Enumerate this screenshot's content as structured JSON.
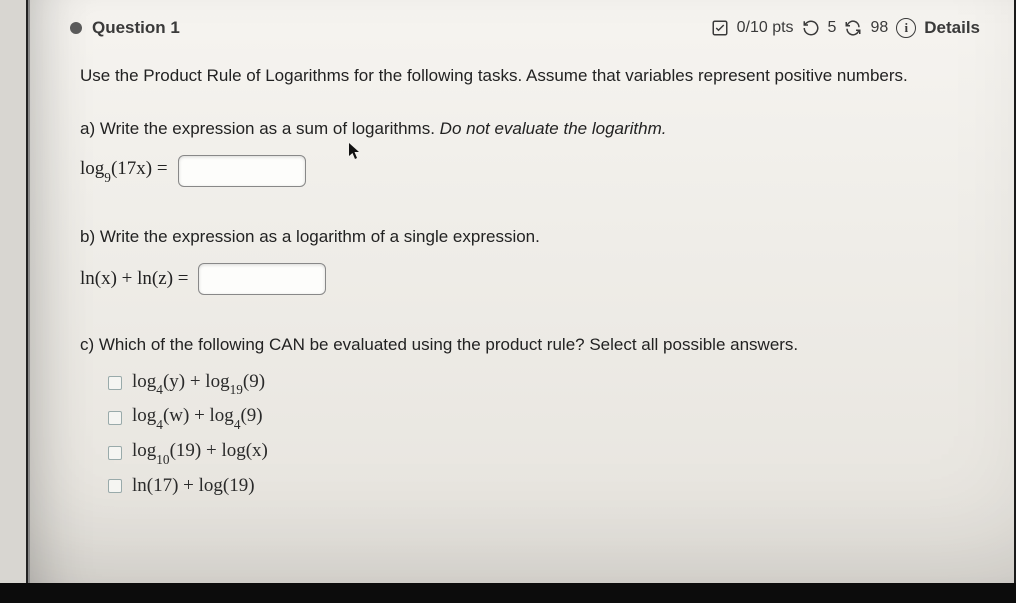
{
  "header": {
    "question_label": "Question 1",
    "score": "0/10 pts",
    "attempts_remaining": "5",
    "time_or_count": "98",
    "details_label": "Details"
  },
  "intro": "Use the Product Rule of Logarithms for the following tasks. Assume that variables represent positive numbers.",
  "part_a": {
    "prompt_prefix": "a) Write the expression as a sum of logarithms. ",
    "prompt_italic": "Do not evaluate the logarithm.",
    "expr_log": "log",
    "expr_base": "9",
    "expr_arg": "(17x)",
    "equals": "="
  },
  "part_b": {
    "prompt": "b) Write the expression as a logarithm of a single expression.",
    "expr": "ln(x) + ln(z) ="
  },
  "part_c": {
    "prompt": "c) Which of the following CAN be evaluated using the product rule? Select all possible answers.",
    "options": [
      {
        "log1": "log",
        "base1": "4",
        "arg1": "(y)",
        "plus": " + ",
        "log2": "log",
        "base2": "19",
        "arg2": "(9)"
      },
      {
        "log1": "log",
        "base1": "4",
        "arg1": "(w)",
        "plus": " + ",
        "log2": "log",
        "base2": "4",
        "arg2": "(9)"
      },
      {
        "log1": "log",
        "base1": "10",
        "arg1": "(19)",
        "plus": " + ",
        "log2": "log",
        "base2": "",
        "arg2": "(x)"
      },
      {
        "log1": "ln",
        "base1": "",
        "arg1": "(17)",
        "plus": " + ",
        "log2": "log",
        "base2": "",
        "arg2": "(19)"
      }
    ]
  },
  "colors": {
    "page_bg_top": "#f6f4f0",
    "page_bg_bottom": "#e6e3dd",
    "text": "#2f2f2f",
    "dot": "#5a5a5a",
    "border_dark": "#1a1a1a"
  }
}
